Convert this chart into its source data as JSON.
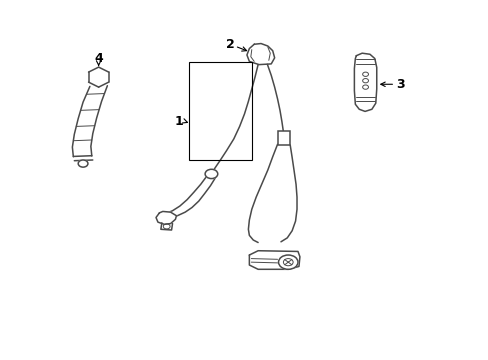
{
  "bg_color": "#ffffff",
  "line_color": "#4a4a4a",
  "label_color": "#000000",
  "fig_width": 4.89,
  "fig_height": 3.6,
  "dpi": 100
}
